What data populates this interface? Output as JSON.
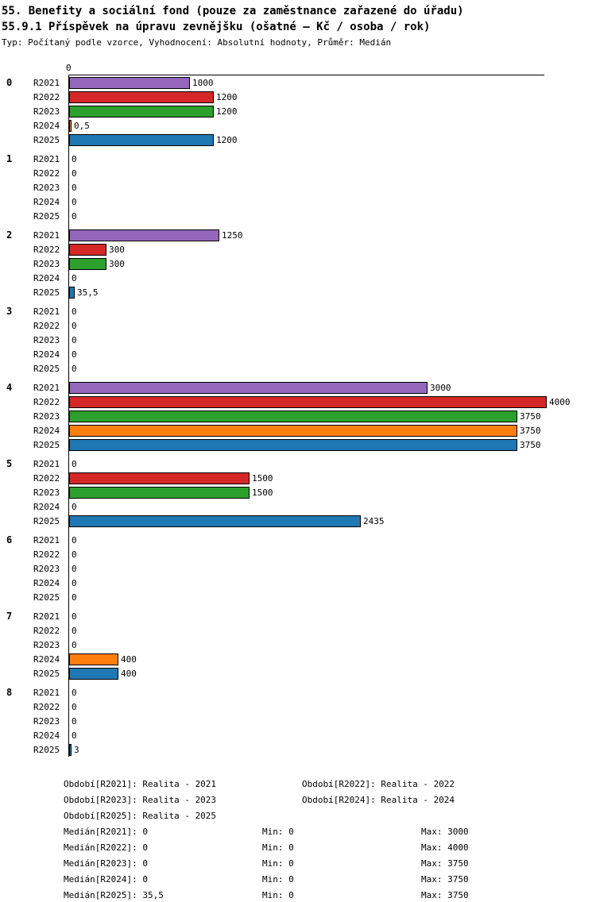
{
  "header": {
    "title": "55. Benefity a sociální fond (pouze za zaměstnance zařazené do úřadu)",
    "chart_title": "55.9.1 Příspěvek na úpravu zevnějšku (ošatné – Kč / osoba / rok)",
    "meta": "Typ: Počítaný podle vzorce, Vyhodnocení: Absolutní hodnoty, Průměr: Medián"
  },
  "chart_data": {
    "type": "bar",
    "orientation": "horizontal",
    "axis_zero_label": "0",
    "xlim": [
      0,
      4000
    ],
    "grid": false,
    "series": [
      "R2021",
      "R2022",
      "R2023",
      "R2024",
      "R2025"
    ],
    "series_colors": {
      "R2021": "#9467bd",
      "R2022": "#d62728",
      "R2023": "#2ca02c",
      "R2024": "#ff7f0e",
      "R2025": "#1f77b4"
    },
    "groups": [
      {
        "label": "0",
        "values": [
          1000,
          1200,
          1200,
          0.5,
          1200
        ],
        "value_labels": [
          "1000",
          "1200",
          "1200",
          "0,5",
          "1200"
        ]
      },
      {
        "label": "1",
        "values": [
          0,
          0,
          0,
          0,
          0
        ],
        "value_labels": [
          "0",
          "0",
          "0",
          "0",
          "0"
        ]
      },
      {
        "label": "2",
        "values": [
          1250,
          300,
          300,
          0,
          35.5
        ],
        "value_labels": [
          "1250",
          "300",
          "300",
          "0",
          "35,5"
        ]
      },
      {
        "label": "3",
        "values": [
          0,
          0,
          0,
          0,
          0
        ],
        "value_labels": [
          "0",
          "0",
          "0",
          "0",
          "0"
        ]
      },
      {
        "label": "4",
        "values": [
          3000,
          4000,
          3750,
          3750,
          3750
        ],
        "value_labels": [
          "3000",
          "4000",
          "3750",
          "3750",
          "3750"
        ]
      },
      {
        "label": "5",
        "values": [
          0,
          1500,
          1500,
          0,
          2435
        ],
        "value_labels": [
          "0",
          "1500",
          "1500",
          "0",
          "2435"
        ]
      },
      {
        "label": "6",
        "values": [
          0,
          0,
          0,
          0,
          0
        ],
        "value_labels": [
          "0",
          "0",
          "0",
          "0",
          "0"
        ]
      },
      {
        "label": "7",
        "values": [
          0,
          0,
          0,
          400,
          400
        ],
        "value_labels": [
          "0",
          "0",
          "0",
          "400",
          "400"
        ]
      },
      {
        "label": "8",
        "values": [
          0,
          0,
          0,
          0,
          3
        ],
        "value_labels": [
          "0",
          "0",
          "0",
          "0",
          "3"
        ]
      }
    ]
  },
  "footer": {
    "periods": [
      {
        "key": "R2021",
        "text": "Období[R2021]: Realita - 2021"
      },
      {
        "key": "R2022",
        "text": "Období[R2022]: Realita - 2022"
      },
      {
        "key": "R2023",
        "text": "Období[R2023]: Realita - 2023"
      },
      {
        "key": "R2024",
        "text": "Období[R2024]: Realita - 2024"
      },
      {
        "key": "R2025",
        "text": "Období[R2025]: Realita - 2025"
      }
    ],
    "stats": [
      {
        "median": "Medián[R2021]: 0",
        "min": "Min: 0",
        "max": "Max: 3000"
      },
      {
        "median": "Medián[R2022]: 0",
        "min": "Min: 0",
        "max": "Max: 4000"
      },
      {
        "median": "Medián[R2023]: 0",
        "min": "Min: 0",
        "max": "Max: 3750"
      },
      {
        "median": "Medián[R2024]: 0",
        "min": "Min: 0",
        "max": "Max: 3750"
      },
      {
        "median": "Medián[R2025]: 35,5",
        "min": "Min: 0",
        "max": "Max: 3750"
      }
    ]
  }
}
